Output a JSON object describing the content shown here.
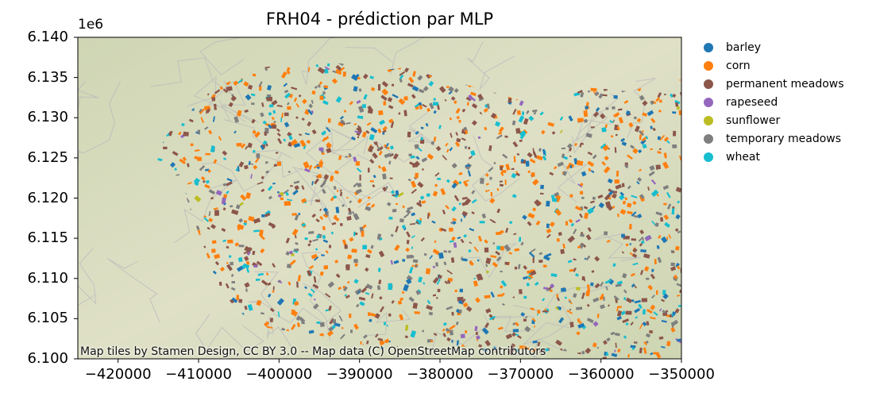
{
  "title": "FRH04 - prédiction par MLP",
  "y_offset_label": "1e6",
  "attribution": "Map tiles by Stamen Design, CC BY 3.0 -- Map data (C) OpenStreetMap contributors",
  "y_ticks": [
    "6.140",
    "6.135",
    "6.130",
    "6.125",
    "6.120",
    "6.115",
    "6.110",
    "6.105",
    "6.100"
  ],
  "x_ticks": [
    "−420000",
    "−410000",
    "−400000",
    "−390000",
    "−380000",
    "−370000",
    "−360000",
    "−350000"
  ],
  "legend": [
    {
      "label": "barley",
      "color": "#1f77b4"
    },
    {
      "label": "corn",
      "color": "#ff7f0e"
    },
    {
      "label": "permanent meadows",
      "color": "#8c564b"
    },
    {
      "label": "rapeseed",
      "color": "#9467bd"
    },
    {
      "label": "sunflower",
      "color": "#bcbd22"
    },
    {
      "label": "temporary meadows",
      "color": "#7f7f7f"
    },
    {
      "label": "wheat",
      "color": "#17becf"
    }
  ],
  "map": {
    "x_range": [
      -425000,
      -350000
    ],
    "y_range": [
      6.1,
      6.14
    ],
    "basemap_color": "#d9dcc0"
  }
}
